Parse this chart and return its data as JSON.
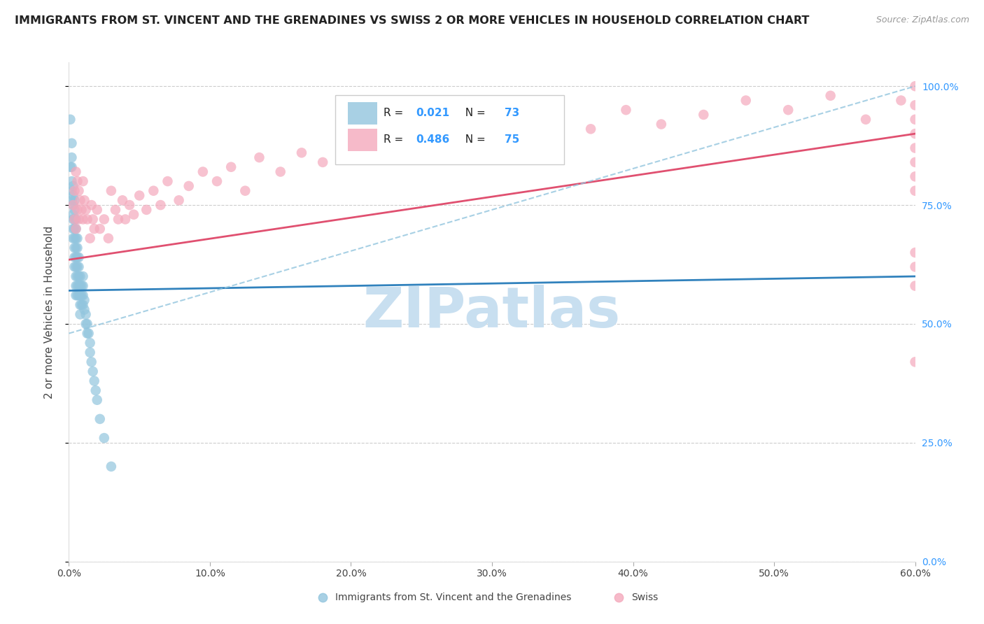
{
  "title": "IMMIGRANTS FROM ST. VINCENT AND THE GRENADINES VS SWISS 2 OR MORE VEHICLES IN HOUSEHOLD CORRELATION CHART",
  "source": "Source: ZipAtlas.com",
  "ylabel": "2 or more Vehicles in Household",
  "legend_label1": "Immigrants from St. Vincent and the Grenadines",
  "legend_label2": "Swiss",
  "R1": 0.021,
  "N1": 73,
  "R2": 0.486,
  "N2": 75,
  "color_blue": "#92c5de",
  "color_pink": "#f4a9bc",
  "color_blue_line": "#3182bd",
  "color_pink_line": "#e05070",
  "color_dashed": "#92c5de",
  "watermark_color": "#c8dff0",
  "xlim": [
    0.0,
    0.6
  ],
  "ylim": [
    0.0,
    1.05
  ],
  "blue_x": [
    0.001,
    0.001,
    0.002,
    0.002,
    0.002,
    0.002,
    0.002,
    0.002,
    0.003,
    0.003,
    0.003,
    0.003,
    0.003,
    0.003,
    0.003,
    0.004,
    0.004,
    0.004,
    0.004,
    0.004,
    0.004,
    0.004,
    0.004,
    0.005,
    0.005,
    0.005,
    0.005,
    0.005,
    0.005,
    0.005,
    0.005,
    0.005,
    0.006,
    0.006,
    0.006,
    0.006,
    0.006,
    0.006,
    0.006,
    0.007,
    0.007,
    0.007,
    0.007,
    0.007,
    0.008,
    0.008,
    0.008,
    0.008,
    0.008,
    0.009,
    0.009,
    0.009,
    0.01,
    0.01,
    0.01,
    0.01,
    0.011,
    0.011,
    0.012,
    0.012,
    0.013,
    0.013,
    0.014,
    0.015,
    0.015,
    0.016,
    0.017,
    0.018,
    0.019,
    0.02,
    0.022,
    0.025,
    0.03
  ],
  "blue_y": [
    0.93,
    0.83,
    0.88,
    0.85,
    0.83,
    0.8,
    0.78,
    0.76,
    0.79,
    0.77,
    0.75,
    0.73,
    0.72,
    0.7,
    0.68,
    0.76,
    0.74,
    0.72,
    0.7,
    0.68,
    0.66,
    0.64,
    0.62,
    0.72,
    0.7,
    0.68,
    0.66,
    0.64,
    0.62,
    0.6,
    0.58,
    0.56,
    0.68,
    0.66,
    0.64,
    0.62,
    0.6,
    0.58,
    0.56,
    0.64,
    0.62,
    0.6,
    0.58,
    0.56,
    0.6,
    0.58,
    0.56,
    0.54,
    0.52,
    0.58,
    0.56,
    0.54,
    0.6,
    0.58,
    0.56,
    0.54,
    0.55,
    0.53,
    0.52,
    0.5,
    0.5,
    0.48,
    0.48,
    0.46,
    0.44,
    0.42,
    0.4,
    0.38,
    0.36,
    0.34,
    0.3,
    0.26,
    0.2
  ],
  "pink_x": [
    0.003,
    0.004,
    0.004,
    0.005,
    0.005,
    0.006,
    0.006,
    0.007,
    0.007,
    0.008,
    0.009,
    0.01,
    0.01,
    0.011,
    0.012,
    0.013,
    0.015,
    0.016,
    0.017,
    0.018,
    0.02,
    0.022,
    0.025,
    0.028,
    0.03,
    0.033,
    0.035,
    0.038,
    0.04,
    0.043,
    0.046,
    0.05,
    0.055,
    0.06,
    0.065,
    0.07,
    0.078,
    0.085,
    0.095,
    0.105,
    0.115,
    0.125,
    0.135,
    0.15,
    0.165,
    0.18,
    0.2,
    0.215,
    0.235,
    0.255,
    0.28,
    0.3,
    0.32,
    0.345,
    0.37,
    0.395,
    0.42,
    0.45,
    0.48,
    0.51,
    0.54,
    0.565,
    0.59,
    0.6,
    0.6,
    0.6,
    0.6,
    0.6,
    0.6,
    0.6,
    0.6,
    0.6,
    0.6,
    0.6,
    0.6
  ],
  "pink_y": [
    0.75,
    0.78,
    0.72,
    0.82,
    0.7,
    0.8,
    0.74,
    0.78,
    0.72,
    0.76,
    0.74,
    0.8,
    0.72,
    0.76,
    0.74,
    0.72,
    0.68,
    0.75,
    0.72,
    0.7,
    0.74,
    0.7,
    0.72,
    0.68,
    0.78,
    0.74,
    0.72,
    0.76,
    0.72,
    0.75,
    0.73,
    0.77,
    0.74,
    0.78,
    0.75,
    0.8,
    0.76,
    0.79,
    0.82,
    0.8,
    0.83,
    0.78,
    0.85,
    0.82,
    0.86,
    0.84,
    0.88,
    0.85,
    0.87,
    0.9,
    0.88,
    0.91,
    0.89,
    0.93,
    0.91,
    0.95,
    0.92,
    0.94,
    0.97,
    0.95,
    0.98,
    0.93,
    0.97,
    1.0,
    0.96,
    0.93,
    0.9,
    0.87,
    0.84,
    0.81,
    0.78,
    0.42,
    0.58,
    0.62,
    0.65
  ],
  "blue_line": [
    0.0,
    0.6,
    0.57,
    0.6
  ],
  "pink_line_x0": 0.0,
  "pink_line_y0": 0.635,
  "pink_line_x1": 0.6,
  "pink_line_y1": 0.9,
  "dash_line_x0": 0.0,
  "dash_line_y0": 0.48,
  "dash_line_x1": 0.6,
  "dash_line_y1": 1.0
}
